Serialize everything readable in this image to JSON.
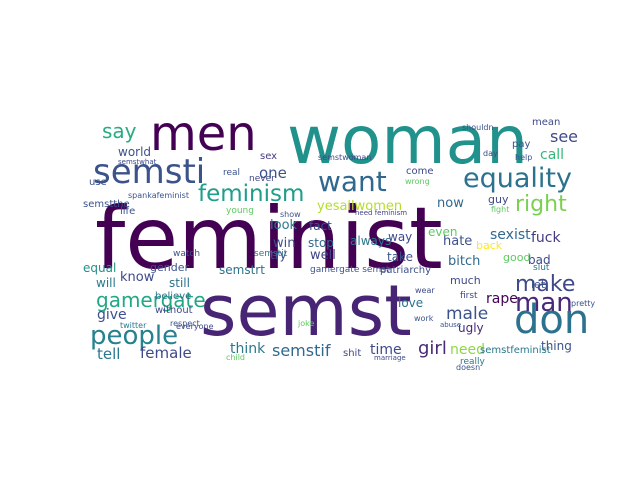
{
  "words": [
    {
      "text": "feminist",
      "color": "#440154"
    },
    {
      "text": "semst",
      "color": "#482475"
    },
    {
      "text": "woman",
      "color": "#21918c"
    },
    {
      "text": "men",
      "color": "#440154"
    },
    {
      "text": "semsti",
      "color": "#3b528b"
    },
    {
      "text": "want",
      "color": "#31688e"
    },
    {
      "text": "don",
      "color": "#2c728e"
    },
    {
      "text": "equality",
      "color": "#2c728e"
    },
    {
      "text": "people",
      "color": "#26828e"
    },
    {
      "text": "gamergate",
      "color": "#22a884"
    },
    {
      "text": "feminism",
      "color": "#1f9e89"
    },
    {
      "text": "man",
      "color": "#482878"
    },
    {
      "text": "right",
      "color": "#7ad151"
    },
    {
      "text": "make",
      "color": "#3e4989"
    },
    {
      "text": "say",
      "color": "#27ad81"
    },
    {
      "text": "semstif",
      "color": "#31688e"
    },
    {
      "text": "girl",
      "color": "#482878"
    },
    {
      "text": "male",
      "color": "#3b528b"
    },
    {
      "text": "female",
      "color": "#3e4989"
    },
    {
      "text": "tell",
      "color": "#2a788e"
    },
    {
      "text": "see",
      "color": "#3e4989"
    },
    {
      "text": "call",
      "color": "#35b779"
    },
    {
      "text": "one",
      "color": "#3b528b"
    },
    {
      "text": "think",
      "color": "#2a788e"
    },
    {
      "text": "semstrt",
      "color": "#2c728e"
    },
    {
      "text": "time",
      "color": "#3e4989"
    },
    {
      "text": "need",
      "color": "#90d743"
    },
    {
      "text": "ugly",
      "color": "#482878"
    },
    {
      "text": "rape",
      "color": "#440154"
    },
    {
      "text": "sexist",
      "color": "#31688e"
    },
    {
      "text": "fuck",
      "color": "#443983"
    },
    {
      "text": "bitch",
      "color": "#31688e"
    },
    {
      "text": "hate",
      "color": "#3b528b"
    },
    {
      "text": "yesallwomen",
      "color": "#b5de2b"
    },
    {
      "text": "now",
      "color": "#31688e"
    },
    {
      "text": "world",
      "color": "#3b528b"
    },
    {
      "text": "semstwoman",
      "color": "#3e4989"
    },
    {
      "text": "give",
      "color": "#3b528b"
    },
    {
      "text": "know",
      "color": "#3e4989"
    },
    {
      "text": "still",
      "color": "#2c728e"
    },
    {
      "text": "well",
      "color": "#414487"
    },
    {
      "text": "try",
      "color": "#3e4989"
    },
    {
      "text": "win",
      "color": "#3b528b"
    },
    {
      "text": "stop",
      "color": "#31688e"
    },
    {
      "text": "look",
      "color": "#2a788e"
    },
    {
      "text": "fact",
      "color": "#3b528b"
    },
    {
      "text": "always",
      "color": "#2a788e"
    },
    {
      "text": "way",
      "color": "#3e4989"
    },
    {
      "text": "take",
      "color": "#3b528b"
    },
    {
      "text": "even",
      "color": "#5ec962"
    },
    {
      "text": "thing",
      "color": "#3b528b"
    },
    {
      "text": "bad",
      "color": "#3e4989"
    },
    {
      "text": "back",
      "color": "#fde725"
    },
    {
      "text": "good",
      "color": "#5ec962"
    },
    {
      "text": "let",
      "color": "#3b528b"
    },
    {
      "text": "love",
      "color": "#2c728e"
    },
    {
      "text": "first",
      "color": "#3e4989"
    },
    {
      "text": "equal",
      "color": "#21918c"
    },
    {
      "text": "will",
      "color": "#2a788e"
    },
    {
      "text": "life",
      "color": "#3b528b"
    },
    {
      "text": "sex",
      "color": "#443983"
    },
    {
      "text": "gender",
      "color": "#3b528b"
    },
    {
      "text": "believe",
      "color": "#2c728e"
    },
    {
      "text": "without",
      "color": "#3e4989"
    },
    {
      "text": "shit",
      "color": "#3e4989"
    },
    {
      "text": "semstfeminist",
      "color": "#2a788e"
    },
    {
      "text": "semstthe",
      "color": "#3b528b"
    },
    {
      "text": "watch",
      "color": "#3b528b"
    },
    {
      "text": "young",
      "color": "#5ec962"
    },
    {
      "text": "semstit",
      "color": "#2a788e"
    },
    {
      "text": "gamergate semst",
      "color": "#3b528b"
    },
    {
      "text": "patriarchy",
      "color": "#3b528b"
    },
    {
      "text": "much",
      "color": "#3e4989"
    },
    {
      "text": "really",
      "color": "#2a788e"
    },
    {
      "text": "guy",
      "color": "#3e4989"
    },
    {
      "text": "slut",
      "color": "#2a788e"
    },
    {
      "text": "mean",
      "color": "#3e4989"
    },
    {
      "text": "pay",
      "color": "#3b528b"
    },
    {
      "text": "spankafeminist",
      "color": "#3b528b"
    },
    {
      "text": "need feminism",
      "color": "#414487"
    },
    {
      "text": "come",
      "color": "#3e4989"
    },
    {
      "text": "wrong",
      "color": "#5ec962"
    },
    {
      "text": "real",
      "color": "#3b528b"
    },
    {
      "text": "everyone",
      "color": "#3e4989"
    },
    {
      "text": "respect",
      "color": "#3b528b"
    },
    {
      "text": "twitter",
      "color": "#2a788e"
    },
    {
      "text": "work",
      "color": "#3b528b"
    },
    {
      "text": "wear",
      "color": "#3e4989"
    },
    {
      "text": "doesn",
      "color": "#3b528b"
    },
    {
      "text": "semstwhat",
      "color": "#3e4989"
    },
    {
      "text": "joke",
      "color": "#5ec962"
    },
    {
      "text": "show",
      "color": "#3b528b"
    },
    {
      "text": "use",
      "color": "#3b528b"
    },
    {
      "text": "never",
      "color": "#3e4989"
    },
    {
      "text": "fight",
      "color": "#5ec962"
    },
    {
      "text": "shouldn",
      "color": "#3b528b"
    },
    {
      "text": "day",
      "color": "#3e4989"
    },
    {
      "text": "help",
      "color": "#3b528b"
    },
    {
      "text": "pretty",
      "color": "#3b528b"
    },
    {
      "text": "child",
      "color": "#5ec962"
    },
    {
      "text": "marriage",
      "color": "#3e4989"
    },
    {
      "text": "abuse",
      "color": "#3b528b"
    }
  ]
}
